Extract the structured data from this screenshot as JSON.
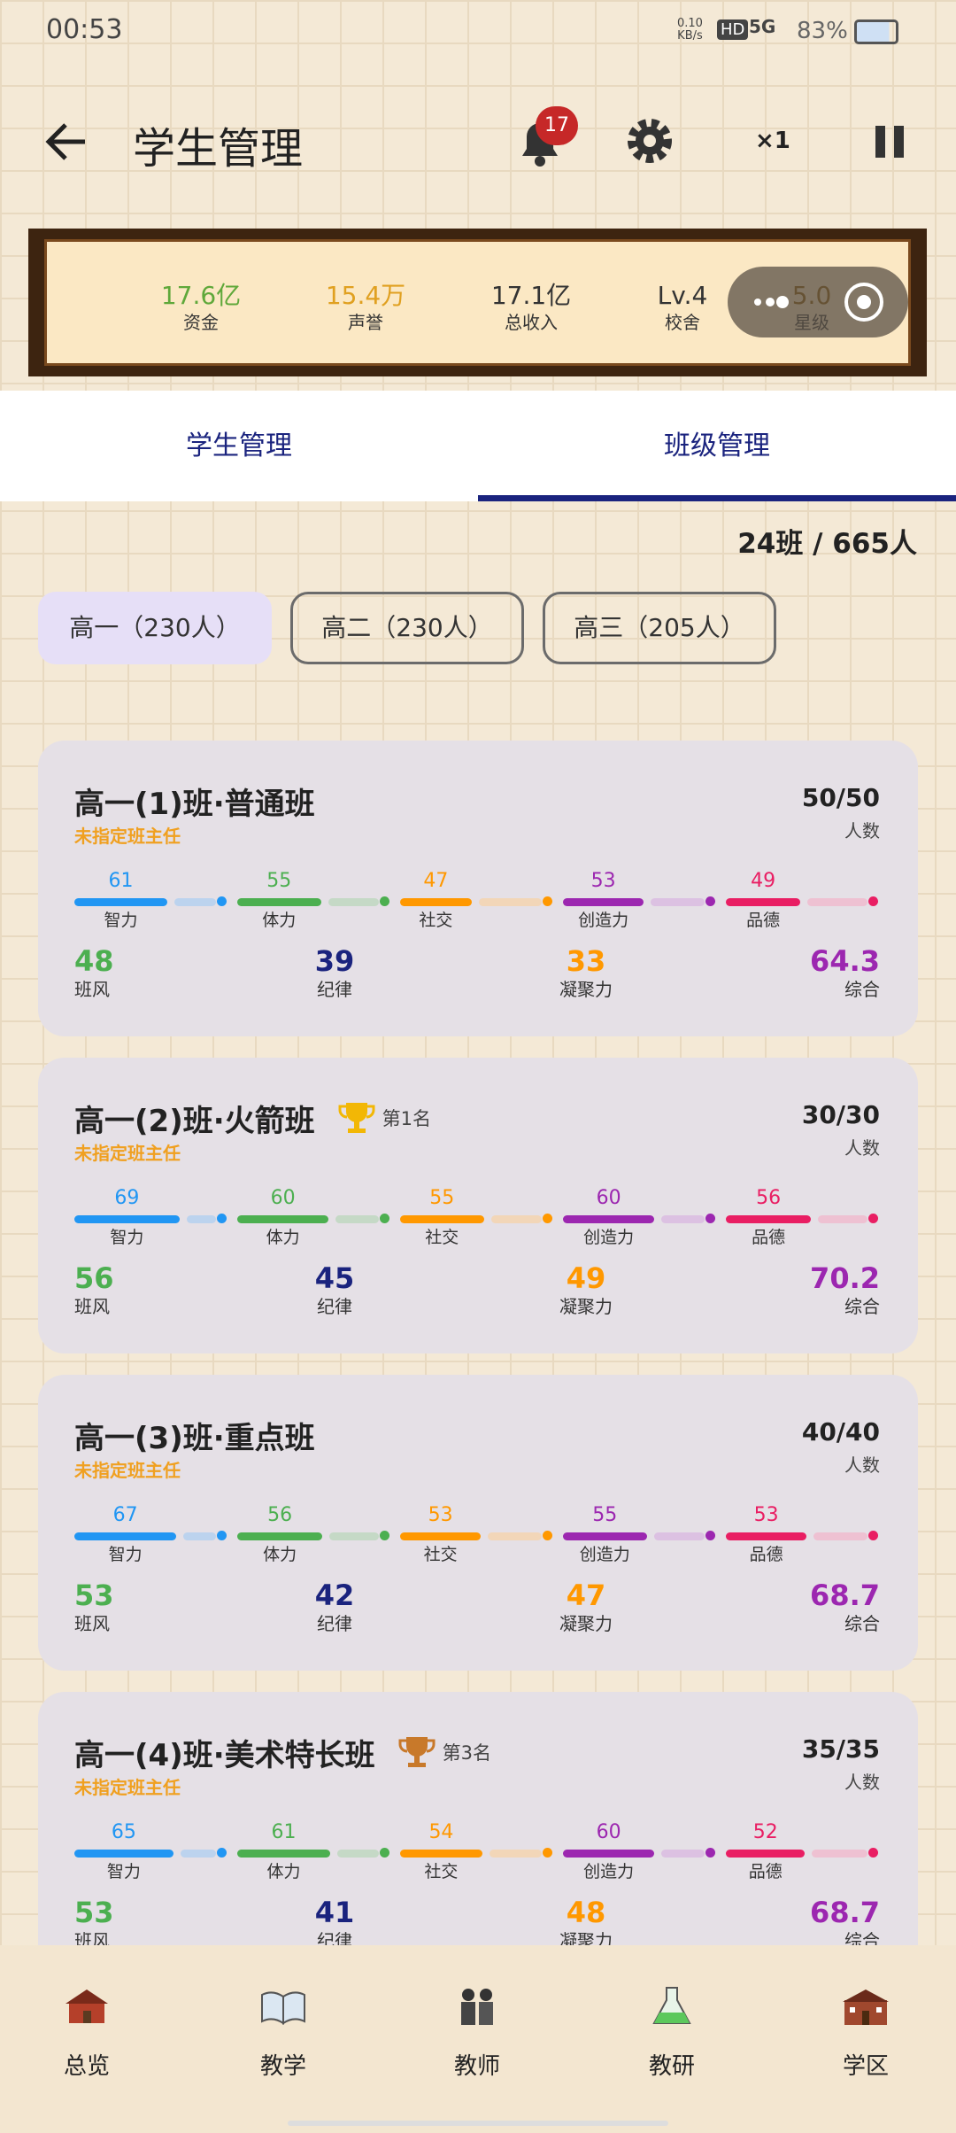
{
  "status_bar": {
    "time": "00:53",
    "net_speed": "0.10",
    "net_unit": "KB/s",
    "hd": "HD",
    "network": "5G",
    "battery": "83%"
  },
  "header": {
    "title": "学生管理",
    "badge": "17",
    "speed": "×1"
  },
  "stats": [
    {
      "value": "17.6亿",
      "label": "资金"
    },
    {
      "value": "15.4万",
      "label": "声誉"
    },
    {
      "value": "17.1亿",
      "label": "总收入"
    },
    {
      "value": "Lv.4",
      "label": "校舍"
    },
    {
      "value": "5.0",
      "label": "星级"
    }
  ],
  "tabs": {
    "items": [
      "学生管理",
      "班级管理"
    ],
    "active": 1
  },
  "summary": "24班 / 665人",
  "grades": {
    "items": [
      "高一（230人）",
      "高二（230人）",
      "高三（205人）"
    ],
    "active": 0
  },
  "classes": [
    {
      "name": "高一(1)班·普通班",
      "teacher": "未指定班主任",
      "count": "50/50",
      "count_label": "人数",
      "attributes": [
        {
          "value": 61,
          "label": "智力"
        },
        {
          "value": 55,
          "label": "体力"
        },
        {
          "value": 47,
          "label": "社交"
        },
        {
          "value": 53,
          "label": "创造力"
        },
        {
          "value": 49,
          "label": "品德"
        }
      ],
      "metrics": [
        {
          "value": 48,
          "label": "班风"
        },
        {
          "value": 39,
          "label": "纪律"
        },
        {
          "value": 33,
          "label": "凝聚力"
        },
        {
          "value": 64.3,
          "label": "综合"
        }
      ]
    },
    {
      "name": "高一(2)班·火箭班",
      "rank": "第1名",
      "teacher": "未指定班主任",
      "count": "30/30",
      "count_label": "人数",
      "attributes": [
        {
          "value": 69,
          "label": "智力"
        },
        {
          "value": 60,
          "label": "体力"
        },
        {
          "value": 55,
          "label": "社交"
        },
        {
          "value": 60,
          "label": "创造力"
        },
        {
          "value": 56,
          "label": "品德"
        }
      ],
      "metrics": [
        {
          "value": 56,
          "label": "班风"
        },
        {
          "value": 45,
          "label": "纪律"
        },
        {
          "value": 49,
          "label": "凝聚力"
        },
        {
          "value": 70.2,
          "label": "综合"
        }
      ]
    },
    {
      "name": "高一(3)班·重点班",
      "teacher": "未指定班主任",
      "count": "40/40",
      "count_label": "人数",
      "attributes": [
        {
          "value": 67,
          "label": "智力"
        },
        {
          "value": 56,
          "label": "体力"
        },
        {
          "value": 53,
          "label": "社交"
        },
        {
          "value": 55,
          "label": "创造力"
        },
        {
          "value": 53,
          "label": "品德"
        }
      ],
      "metrics": [
        {
          "value": 53,
          "label": "班风"
        },
        {
          "value": 42,
          "label": "纪律"
        },
        {
          "value": 47,
          "label": "凝聚力"
        },
        {
          "value": 68.7,
          "label": "综合"
        }
      ]
    },
    {
      "name": "高一(4)班·美术特长班",
      "rank": "第3名",
      "teacher": "未指定班主任",
      "count": "35/35",
      "count_label": "人数",
      "attributes": [
        {
          "value": 65,
          "label": "智力"
        },
        {
          "value": 61,
          "label": "体力"
        },
        {
          "value": 54,
          "label": "社交"
        },
        {
          "value": 60,
          "label": "创造力"
        },
        {
          "value": 52,
          "label": "品德"
        }
      ],
      "metrics": [
        {
          "value": 53,
          "label": "班风"
        },
        {
          "value": 41,
          "label": "纪律"
        },
        {
          "value": 48,
          "label": "凝聚力"
        },
        {
          "value": 68.7,
          "label": "综合"
        }
      ]
    }
  ],
  "nav": [
    "总览",
    "教学",
    "教师",
    "教研",
    "学区"
  ]
}
